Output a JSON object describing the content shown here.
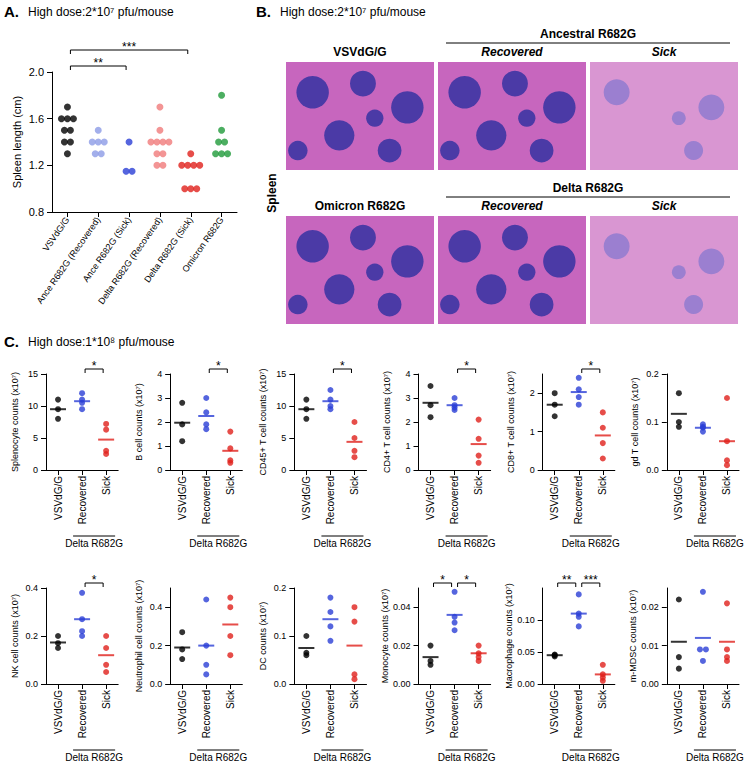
{
  "panels": [
    {
      "letter": "A.",
      "title": "High dose:2*10⁷ pfu/mouse"
    },
    {
      "letter": "B.",
      "title": "High dose:2*10⁷ pfu/mouse",
      "row_label": "Spleen",
      "rows": [
        [
          {
            "header": "VSVdG/G",
            "subheaders": []
          },
          {
            "header": "Ancestral R682G",
            "subheaders": [
              "Recovered",
              "Sick"
            ]
          }
        ],
        [
          {
            "header": "Omicron R682G",
            "subheaders": []
          },
          {
            "header": "Delta R682G",
            "subheaders": [
              "Recovered",
              "Sick"
            ]
          }
        ]
      ]
    },
    {
      "letter": "C.",
      "title": "High dose:1*10⁸ pfu/mouse"
    }
  ],
  "chart_data": [
    {
      "type": "scatter",
      "marker": "circle",
      "ylabel": "Spleen length (cm)",
      "categories": [
        "VSVdG/G",
        "Ance R682G (Recovered)",
        "Ance R682G (Sick)",
        "Delta R682G (Recovered)",
        "Delta R682G (Sick)",
        "Omicron R682G"
      ],
      "colors": [
        "#000000",
        "#8c9be6",
        "#2b3fd6",
        "#f07a7a",
        "#e0201b",
        "#1f9a3a"
      ],
      "values": [
        [
          1.7,
          1.6,
          1.6,
          1.6,
          1.5,
          1.5,
          1.4,
          1.4,
          1.3
        ],
        [
          1.5,
          1.4,
          1.4,
          1.4,
          1.3,
          1.3
        ],
        [
          1.4,
          1.15,
          1.15
        ],
        [
          1.7,
          1.5,
          1.4,
          1.4,
          1.4,
          1.4,
          1.3,
          1.3,
          1.2,
          1.2
        ],
        [
          1.3,
          1.2,
          1.2,
          1.2,
          1.2,
          1.0,
          1.0,
          1.0
        ],
        [
          1.8,
          1.5,
          1.4,
          1.4,
          1.3,
          1.3,
          1.3
        ]
      ],
      "ylim": [
        0.8,
        2.0
      ],
      "yticks": [
        0.8,
        1.2,
        1.6,
        {
          "value": 2,
          "label": "2.0"
        }
      ],
      "grid": false,
      "comparisons": [
        {
          "between": [
            "VSVdG/G",
            "Ance R682G (Sick)"
          ],
          "label": "**"
        },
        {
          "between": [
            "VSVdG/G",
            "Delta R682G (Sick)"
          ],
          "label": "***"
        }
      ]
    },
    {
      "type": "scatter",
      "marker": "circle",
      "ylabel": "Splenocyte counts (x10⁷)",
      "categories": [
        "VSVdG/G",
        "Recovered",
        "Sick"
      ],
      "group_label": {
        "text": "Delta R682G",
        "categories": [
          "Recovered",
          "Sick"
        ]
      },
      "colors": [
        "#000000",
        "#2b3fd6",
        "#e0201b"
      ],
      "values": [
        [
          11,
          9.5,
          8
        ],
        [
          12,
          11,
          10.5,
          9.5
        ],
        [
          7.2,
          6.3,
          3,
          2.5
        ]
      ],
      "means": [
        9.5,
        10.75,
        4.75
      ],
      "ylim": [
        0,
        15
      ],
      "yticks": [
        0,
        5,
        10,
        15
      ],
      "grid": false,
      "comparisons": [
        {
          "between": [
            "Recovered",
            "Sick"
          ],
          "label": "*"
        }
      ]
    },
    {
      "type": "scatter",
      "marker": "circle",
      "ylabel": "B cell counts (x10⁷)",
      "categories": [
        "VSVdG/G",
        "Recovered",
        "Sick"
      ],
      "group_label": {
        "text": "Delta R682G",
        "categories": [
          "Recovered",
          "Sick"
        ]
      },
      "colors": [
        "#000000",
        "#2b3fd6",
        "#e0201b"
      ],
      "values": [
        [
          2.8,
          1.9,
          1.2
        ],
        [
          3,
          2.4,
          1.9,
          1.7
        ],
        [
          1.6,
          0.9,
          0.4,
          0.3
        ]
      ],
      "means": [
        1.97,
        2.25,
        0.8
      ],
      "ylim": [
        0,
        4
      ],
      "yticks": [
        0,
        1,
        2,
        3,
        4
      ],
      "grid": false,
      "comparisons": [
        {
          "between": [
            "Recovered",
            "Sick"
          ],
          "label": "*"
        }
      ]
    },
    {
      "type": "scatter",
      "marker": "circle",
      "ylabel": "CD45+ T cell counts (x10⁷)",
      "categories": [
        "VSVdG/G",
        "Recovered",
        "Sick"
      ],
      "group_label": {
        "text": "Delta R682G",
        "categories": [
          "Recovered",
          "Sick"
        ]
      },
      "colors": [
        "#000000",
        "#2b3fd6",
        "#e0201b"
      ],
      "values": [
        [
          11,
          9.5,
          8
        ],
        [
          12.5,
          11,
          10,
          9.5
        ],
        [
          7.5,
          5,
          3,
          2
        ]
      ],
      "means": [
        9.5,
        10.75,
        4.4
      ],
      "ylim": [
        0,
        15
      ],
      "yticks": [
        0,
        5,
        10,
        15
      ],
      "grid": false,
      "comparisons": [
        {
          "between": [
            "Recovered",
            "Sick"
          ],
          "label": "*"
        }
      ]
    },
    {
      "type": "scatter",
      "marker": "circle",
      "ylabel": "CD4+ T cell counts (x10⁷)",
      "categories": [
        "VSVdG/G",
        "Recovered",
        "Sick"
      ],
      "group_label": {
        "text": "Delta R682G",
        "categories": [
          "Recovered",
          "Sick"
        ]
      },
      "colors": [
        "#000000",
        "#2b3fd6",
        "#e0201b"
      ],
      "values": [
        [
          3.5,
          2.7,
          2.2
        ],
        [
          3,
          2.7,
          2.6,
          2.5
        ],
        [
          2.1,
          1.3,
          0.6,
          0.3
        ]
      ],
      "means": [
        2.8,
        2.7,
        1.08
      ],
      "ylim": [
        0,
        4
      ],
      "yticks": [
        0,
        1,
        2,
        3,
        4
      ],
      "grid": false,
      "comparisons": [
        {
          "between": [
            "Recovered",
            "Sick"
          ],
          "label": "*"
        }
      ]
    },
    {
      "type": "scatter",
      "marker": "circle",
      "ylabel": "CD8+ T cell counts (x10⁷)",
      "categories": [
        "VSVdG/G",
        "Recovered",
        "Sick"
      ],
      "group_label": {
        "text": "Delta R682G",
        "categories": [
          "Recovered",
          "Sick"
        ]
      },
      "colors": [
        "#000000",
        "#2b3fd6",
        "#e0201b"
      ],
      "values": [
        [
          2,
          1.7,
          1.4
        ],
        [
          2.4,
          2.1,
          1.9,
          1.7
        ],
        [
          1.5,
          1.1,
          0.7,
          0.3
        ]
      ],
      "means": [
        1.7,
        2.03,
        0.9
      ],
      "ylim": [
        0,
        2.5
      ],
      "yticks": [
        0,
        1,
        2
      ],
      "grid": false,
      "comparisons": [
        {
          "between": [
            "Recovered",
            "Sick"
          ],
          "label": "*"
        }
      ]
    },
    {
      "type": "scatter",
      "marker": "circle",
      "ylabel": "gd T cell counts (x10⁷)",
      "categories": [
        "VSVdG/G",
        "Recovered",
        "Sick"
      ],
      "group_label": {
        "text": "Delta R682G",
        "categories": [
          "Recovered",
          "Sick"
        ]
      },
      "colors": [
        "#000000",
        "#2b3fd6",
        "#e0201b"
      ],
      "values": [
        [
          0.16,
          0.1,
          0.09
        ],
        [
          0.095,
          0.09,
          0.088,
          0.08
        ],
        [
          0.15,
          0.06,
          0.02,
          0.01
        ]
      ],
      "means": [
        0.117,
        0.088,
        0.06
      ],
      "ylim": [
        0,
        0.2
      ],
      "yticks": [
        {
          "value": 0,
          "label": "0.0"
        },
        0.1,
        0.2
      ],
      "grid": false,
      "comparisons": []
    },
    {
      "type": "scatter",
      "marker": "circle",
      "ylabel": "NK cell counts (x10⁷)",
      "categories": [
        "VSVdG/G",
        "Recovered",
        "Sick"
      ],
      "group_label": {
        "text": "Delta R682G",
        "categories": [
          "Recovered",
          "Sick"
        ]
      },
      "colors": [
        "#000000",
        "#2b3fd6",
        "#e0201b"
      ],
      "values": [
        [
          0.2,
          0.17,
          0.15
        ],
        [
          0.38,
          0.27,
          0.22,
          0.2
        ],
        [
          0.2,
          0.15,
          0.08,
          0.05
        ]
      ],
      "means": [
        0.173,
        0.27,
        0.12
      ],
      "ylim": [
        0,
        0.4
      ],
      "yticks": [
        {
          "value": 0,
          "label": "0.0"
        },
        0.2,
        0.4
      ],
      "grid": false,
      "comparisons": [
        {
          "between": [
            "Recovered",
            "Sick"
          ],
          "label": "*"
        }
      ]
    },
    {
      "type": "scatter",
      "marker": "circle",
      "ylabel": "Neutrophil cell counts (x10⁷)",
      "categories": [
        "VSVdG/G",
        "Recovered",
        "Sick"
      ],
      "group_label": {
        "text": "Delta R682G",
        "categories": [
          "Recovered",
          "Sick"
        ]
      },
      "colors": [
        "#000000",
        "#2b3fd6",
        "#e0201b"
      ],
      "values": [
        [
          0.27,
          0.18,
          0.13
        ],
        [
          0.44,
          0.2,
          0.1,
          0.05
        ],
        [
          0.45,
          0.4,
          0.25,
          0.15
        ]
      ],
      "means": [
        0.19,
        0.2,
        0.31
      ],
      "ylim": [
        0,
        0.5
      ],
      "yticks": [
        {
          "value": 0,
          "label": "0.0"
        },
        0.2,
        0.4
      ],
      "grid": false,
      "comparisons": []
    },
    {
      "type": "scatter",
      "marker": "circle",
      "ylabel": "DC counts (x10⁷)",
      "categories": [
        "VSVdG/G",
        "Recovered",
        "Sick"
      ],
      "group_label": {
        "text": "Delta R682G",
        "categories": [
          "Recovered",
          "Sick"
        ]
      },
      "colors": [
        "#000000",
        "#2b3fd6",
        "#e0201b"
      ],
      "values": [
        [
          0.1,
          0.065,
          0.06
        ],
        [
          0.18,
          0.15,
          0.12,
          0.09
        ],
        [
          0.16,
          0.13,
          0.02,
          0.01
        ]
      ],
      "means": [
        0.075,
        0.135,
        0.08
      ],
      "ylim": [
        0,
        0.2
      ],
      "yticks": [
        {
          "value": 0,
          "label": "0.0"
        },
        0.1,
        0.2
      ],
      "grid": false,
      "comparisons": []
    },
    {
      "type": "scatter",
      "marker": "circle",
      "ylabel": "Monocyte counts (x10⁷)",
      "categories": [
        "VSVdG/G",
        "Recovered",
        "Sick"
      ],
      "group_label": {
        "text": "Delta R682G",
        "categories": [
          "Recovered",
          "Sick"
        ]
      },
      "colors": [
        "#000000",
        "#2b3fd6",
        "#e0201b"
      ],
      "values": [
        [
          0.02,
          0.012,
          0.01
        ],
        [
          0.048,
          0.035,
          0.032,
          0.028
        ],
        [
          0.02,
          0.016,
          0.014,
          0.012
        ]
      ],
      "means": [
        0.014,
        0.036,
        0.016
      ],
      "ylim": [
        0,
        0.05
      ],
      "yticks": [
        {
          "value": 0,
          "label": "0.00"
        },
        0.02,
        0.04
      ],
      "grid": false,
      "comparisons": [
        {
          "between": [
            "VSVdG/G",
            "Recovered"
          ],
          "label": "*"
        },
        {
          "between": [
            "Recovered",
            "Sick"
          ],
          "label": "*"
        }
      ]
    },
    {
      "type": "scatter",
      "marker": "circle",
      "ylabel": "Macrophage counts (x10⁷)",
      "categories": [
        "VSVdG/G",
        "Recovered",
        "Sick"
      ],
      "group_label": {
        "text": "Delta R682G",
        "categories": [
          "Recovered",
          "Sick"
        ]
      },
      "colors": [
        "#000000",
        "#2b3fd6",
        "#e0201b"
      ],
      "values": [
        [
          0.046,
          0.045,
          0.043
        ],
        [
          0.14,
          0.11,
          0.105,
          0.09
        ],
        [
          0.03,
          0.015,
          0.01,
          0.005
        ]
      ],
      "means": [
        0.045,
        0.11,
        0.015
      ],
      "ylim": [
        0,
        0.15
      ],
      "yticks": [
        {
          "value": 0,
          "label": "0.00"
        },
        0.05,
        {
          "value": 0.1,
          "label": "0.10"
        }
      ],
      "grid": false,
      "comparisons": [
        {
          "between": [
            "VSVdG/G",
            "Recovered"
          ],
          "label": "**"
        },
        {
          "between": [
            "Recovered",
            "Sick"
          ],
          "label": "***"
        }
      ]
    },
    {
      "type": "scatter",
      "marker": "circle",
      "ylabel": "m-MDSC counts (x10⁷)",
      "categories": [
        "VSVdG/G",
        "Recovered",
        "Sick"
      ],
      "group_label": {
        "text": "Delta R682G",
        "categories": [
          "Recovered",
          "Sick"
        ]
      },
      "colors": [
        "#000000",
        "#2b3fd6",
        "#e0201b"
      ],
      "values": [
        [
          0.022,
          0.007,
          0.004
        ],
        [
          0.024,
          0.009,
          0.009,
          0.006
        ],
        [
          0.021,
          0.009,
          0.007,
          0.006
        ]
      ],
      "means": [
        0.011,
        0.012,
        0.011
      ],
      "ylim": [
        0,
        0.025
      ],
      "yticks": [
        {
          "value": 0,
          "label": "0.00"
        },
        0.01,
        0.02
      ],
      "grid": false,
      "comparisons": []
    }
  ]
}
